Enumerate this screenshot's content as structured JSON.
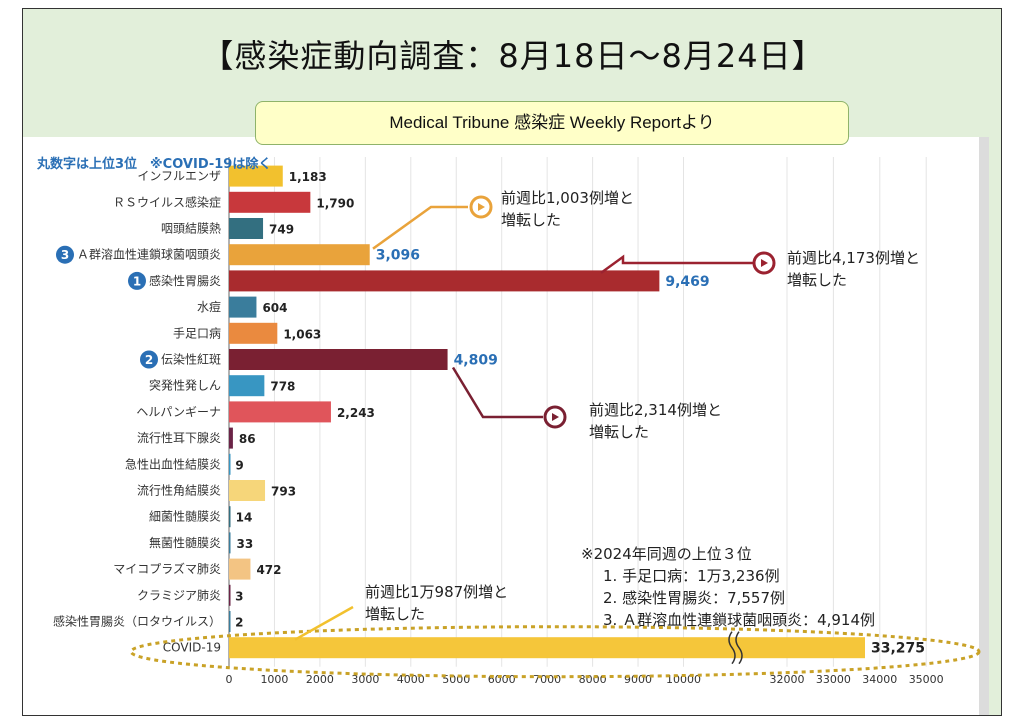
{
  "title": "【感染症動向調査：8月18日～8月24日】",
  "source": "Medical Tribune 感染症 Weekly Reportより",
  "note": "丸数字は上位3位　※COVID-19は除く",
  "colors": {
    "background": "#e2efda",
    "source_box": "#ffffc8",
    "rank_badge": "#2a6fb5",
    "annotation_orange": "#e9a33b",
    "annotation_red": "#9b2230",
    "annotation_dark": "#7a2032",
    "ellipse": "#c9a227"
  },
  "chart_data": {
    "type": "bar",
    "orientation": "horizontal",
    "categories": [
      "インフルエンザ",
      "ＲＳウイルス感染症",
      "咽頭結膜熱",
      "Ａ群溶血性連鎖球菌咽頭炎",
      "感染性胃腸炎",
      "水痘",
      "手足口病",
      "伝染性紅斑",
      "突発性発しん",
      "ヘルパンギーナ",
      "流行性耳下腺炎",
      "急性出血性結膜炎",
      "流行性角結膜炎",
      "細菌性髄膜炎",
      "無菌性髄膜炎",
      "マイコプラズマ肺炎",
      "クラミジア肺炎",
      "感染性胃腸炎（ロタウイルス）",
      "COVID-19"
    ],
    "values": [
      1183,
      1790,
      749,
      3096,
      9469,
      604,
      1063,
      4809,
      778,
      2243,
      86,
      9,
      793,
      14,
      33,
      472,
      3,
      2,
      33275
    ],
    "value_labels": [
      "1,183",
      "1,790",
      "749",
      "3,096",
      "9,469",
      "604",
      "1,063",
      "4,809",
      "778",
      "2,243",
      "86",
      "9",
      "793",
      "14",
      "33",
      "472",
      "3",
      "2",
      "33,275"
    ],
    "bar_colors": [
      "#f2c12e",
      "#c8383c",
      "#336f80",
      "#e9a33b",
      "#a92b2e",
      "#3a7d9c",
      "#ea8a3f",
      "#7a2032",
      "#3896c2",
      "#e0555b",
      "#6b2447",
      "#3896c2",
      "#f6d67a",
      "#336f80",
      "#3a7d9c",
      "#f3c483",
      "#6b2447",
      "#3a7d9c",
      "#f5c63a"
    ],
    "ranks": {
      "4": "1",
      "7": "2",
      "3": "3"
    },
    "xlim": [
      0,
      35000
    ],
    "axis_break": [
      10500,
      31500
    ],
    "x_ticks": [
      "0",
      "1000",
      "2000",
      "3000",
      "4000",
      "5000",
      "6000",
      "7000",
      "8000",
      "9000",
      "10000",
      "32000",
      "33000",
      "34000",
      "35000"
    ],
    "x_tick_values": [
      0,
      1000,
      2000,
      3000,
      4000,
      5000,
      6000,
      7000,
      8000,
      9000,
      10000,
      32000,
      33000,
      34000,
      35000
    ],
    "grid": true
  },
  "annotations": [
    {
      "lines": [
        "前週比1,003例増と",
        "増転した"
      ],
      "target": "Ａ群溶血性連鎖球菌咽頭炎"
    },
    {
      "lines": [
        "前週比4,173例増と",
        "増転した"
      ],
      "target": "感染性胃腸炎"
    },
    {
      "lines": [
        "前週比2,314例増と",
        "増転した"
      ],
      "target": "伝染性紅斑"
    },
    {
      "lines": [
        "前週比1万987例増と",
        "増転した"
      ],
      "target": "COVID-19"
    }
  ],
  "last_year": {
    "title": "※2024年同週の上位３位",
    "rows": [
      "1. 手足口病：1万3,236例",
      "2. 感染性胃腸炎：7,557例",
      "3. Ａ群溶血性連鎖球菌咽頭炎：4,914例"
    ]
  }
}
